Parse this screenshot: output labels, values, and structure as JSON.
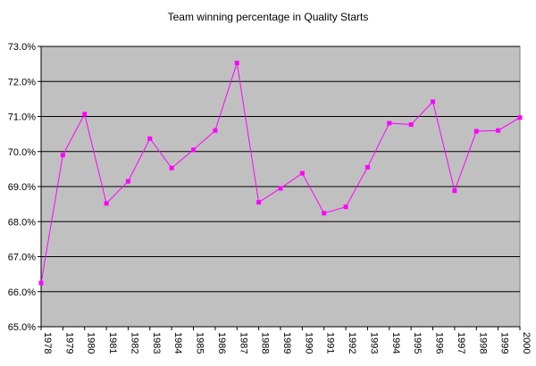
{
  "chart_data": {
    "type": "line",
    "title": "Team winning percentage in Quality Starts",
    "xlabel": "",
    "ylabel": "",
    "categories": [
      "1978",
      "1979",
      "1980",
      "1981",
      "1982",
      "1983",
      "1984",
      "1985",
      "1986",
      "1987",
      "1988",
      "1989",
      "1990",
      "1991",
      "1992",
      "1993",
      "1994",
      "1995",
      "1996",
      "1997",
      "1998",
      "1999",
      "2000"
    ],
    "series": [
      {
        "values": [
          66.25,
          69.9,
          71.07,
          68.52,
          69.15,
          70.37,
          69.53,
          70.05,
          70.6,
          72.53,
          68.55,
          68.95,
          69.38,
          68.24,
          68.42,
          69.55,
          70.81,
          70.77,
          71.42,
          68.88,
          70.58,
          70.6,
          70.97
        ],
        "color": "#ff00ff"
      }
    ],
    "ylim": [
      65.0,
      73.0
    ],
    "yticks": [
      "65.0%",
      "66.0%",
      "67.0%",
      "68.0%",
      "69.0%",
      "70.0%",
      "71.0%",
      "72.0%",
      "73.0%"
    ],
    "grid": true,
    "plot_background": "#c0c0c0"
  }
}
